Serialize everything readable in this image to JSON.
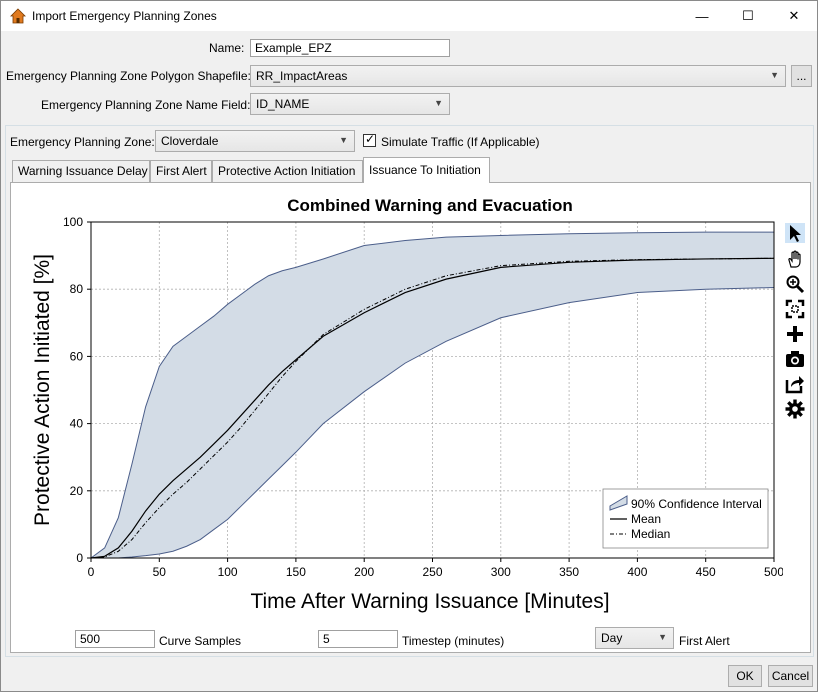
{
  "window": {
    "title": "Import Emergency Planning Zones",
    "controls": {
      "minimize": "—",
      "maximize": "☐",
      "close": "✕"
    }
  },
  "form": {
    "name_label": "Name:",
    "name_value": "Example_EPZ",
    "shapefile_label": "Emergency Planning Zone Polygon Shapefile:",
    "shapefile_value": "RR_ImpactAreas",
    "browse_label": "...",
    "name_field_label": "Emergency Planning Zone Name Field:",
    "name_field_value": "ID_NAME"
  },
  "zone": {
    "label": "Emergency Planning Zone:",
    "value": "Cloverdale",
    "simulate_label": "Simulate Traffic (If Applicable)",
    "simulate_checked": true
  },
  "tabs": [
    {
      "label": "Warning Issuance Delay",
      "active": false
    },
    {
      "label": "First Alert",
      "active": false
    },
    {
      "label": "Protective Action Initiation",
      "active": false
    },
    {
      "label": "Issuance To Initiation",
      "active": true
    }
  ],
  "toolbar_icons": [
    "cursor-icon",
    "hand-icon",
    "zoom-icon",
    "zoom-extents-icon",
    "plus-icon",
    "camera-icon",
    "export-icon",
    "gear-icon"
  ],
  "chart_data": {
    "type": "area",
    "title": "Combined Warning and Evacuation",
    "xlabel": "Time After Warning Issuance [Minutes]",
    "ylabel": "Protective Action Initiated [%]",
    "xlim": [
      0,
      500
    ],
    "ylim": [
      0,
      100
    ],
    "xticks": [
      0,
      50,
      100,
      150,
      200,
      250,
      300,
      350,
      400,
      450,
      500
    ],
    "yticks": [
      0,
      20,
      40,
      60,
      80,
      100
    ],
    "grid": true,
    "legend_position": "bottom-right",
    "colors": {
      "band_fill": "#d3dce6",
      "band_stroke": "#4b5e8a",
      "mean": "#000000",
      "median": "#000000"
    },
    "x": [
      0,
      10,
      20,
      30,
      40,
      50,
      60,
      70,
      80,
      90,
      100,
      110,
      120,
      130,
      140,
      150,
      170,
      200,
      230,
      260,
      300,
      350,
      400,
      450,
      500
    ],
    "series": [
      {
        "name": "90% Confidence Interval",
        "kind": "band",
        "lower": [
          0,
          0,
          0,
          0.3,
          0.7,
          1.2,
          2,
          3.5,
          5.5,
          8.5,
          11.5,
          15.5,
          19.5,
          23.5,
          27.5,
          31.5,
          40,
          49.5,
          58,
          64.5,
          71.5,
          76,
          79,
          80,
          80.5
        ],
        "upper": [
          0,
          3,
          12,
          28,
          45,
          57,
          63,
          66,
          69,
          72,
          75.5,
          78.5,
          81.5,
          84,
          85.5,
          86.5,
          89,
          93,
          94.5,
          95.5,
          96,
          96.5,
          96.8,
          97,
          97
        ]
      },
      {
        "name": "Mean",
        "kind": "line",
        "style": "solid",
        "values": [
          0,
          0.5,
          3,
          8,
          14,
          19,
          23,
          26.5,
          30,
          34,
          38,
          42.5,
          47,
          51.5,
          55.5,
          59,
          66,
          73,
          79,
          83,
          86.5,
          88,
          88.7,
          89,
          89.2
        ]
      },
      {
        "name": "Median",
        "kind": "line",
        "style": "dashdot",
        "values": [
          0,
          0.3,
          2,
          5.5,
          10.5,
          15,
          19,
          22.5,
          26.5,
          30.5,
          34.5,
          39,
          44,
          49,
          54,
          58.5,
          66.5,
          74,
          80,
          84,
          87,
          88.3,
          88.8,
          89,
          89.2
        ]
      }
    ]
  },
  "bottom": {
    "curve_samples_value": "500",
    "curve_samples_label": "Curve Samples",
    "timestep_value": "5",
    "timestep_label": "Timestep (minutes)",
    "unit_value": "Day",
    "first_alert_label": "First Alert"
  },
  "buttons": {
    "ok": "OK",
    "cancel": "Cancel"
  }
}
